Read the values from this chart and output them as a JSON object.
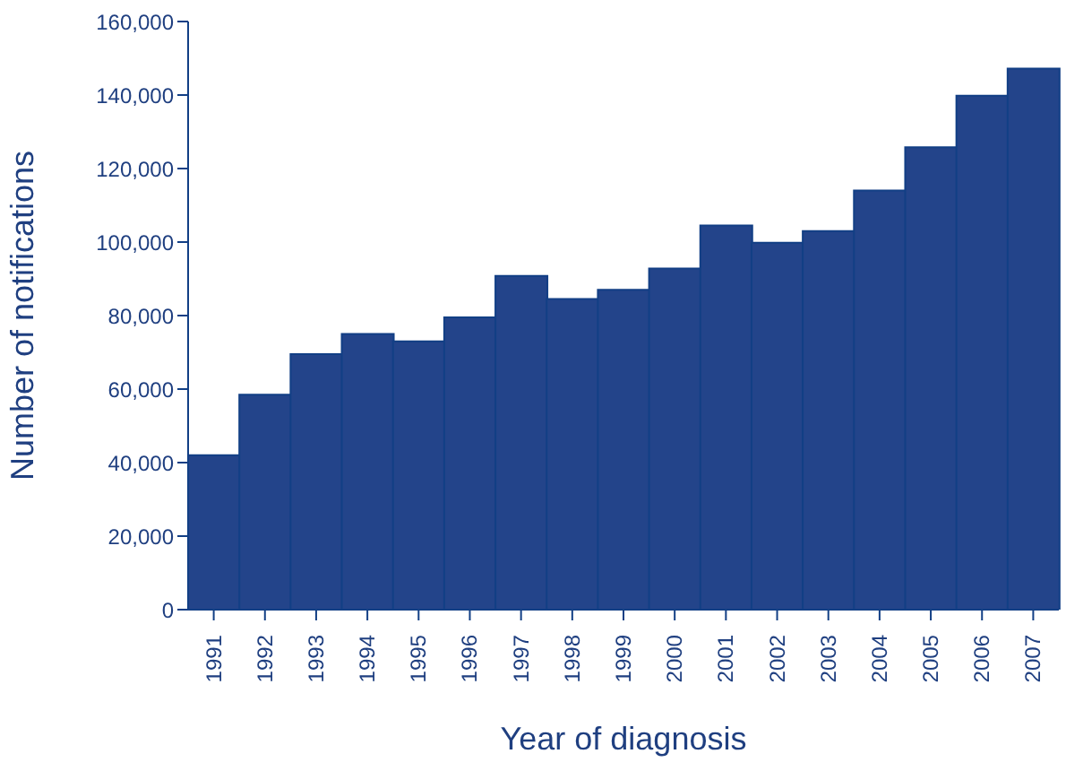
{
  "chart_data": {
    "type": "bar",
    "xlabel": "Year of diagnosis",
    "ylabel": "Number of notifications",
    "categories": [
      "1991",
      "1992",
      "1993",
      "1994",
      "1995",
      "1996",
      "1997",
      "1998",
      "1999",
      "2000",
      "2001",
      "2002",
      "2003",
      "2004",
      "2005",
      "2006",
      "2007"
    ],
    "values": [
      42000,
      58500,
      69500,
      75000,
      73000,
      79500,
      90800,
      84500,
      87000,
      92800,
      104500,
      99800,
      103000,
      114000,
      125800,
      139800,
      147200
    ],
    "color": "#23448a",
    "ylim": [
      0,
      160000
    ],
    "yticks": [
      0,
      {
        "value": 20000,
        "label": "20,000"
      },
      {
        "value": 40000,
        "label": "40,000"
      },
      {
        "value": 60000,
        "label": "60,000"
      },
      {
        "value": 80000,
        "label": "80,000"
      },
      {
        "value": 100000,
        "label": "100,000"
      },
      {
        "value": 120000,
        "label": "120,000"
      },
      {
        "value": 140000,
        "label": "140,000"
      },
      {
        "value": 160000,
        "label": "160,000"
      }
    ],
    "grid": false
  }
}
